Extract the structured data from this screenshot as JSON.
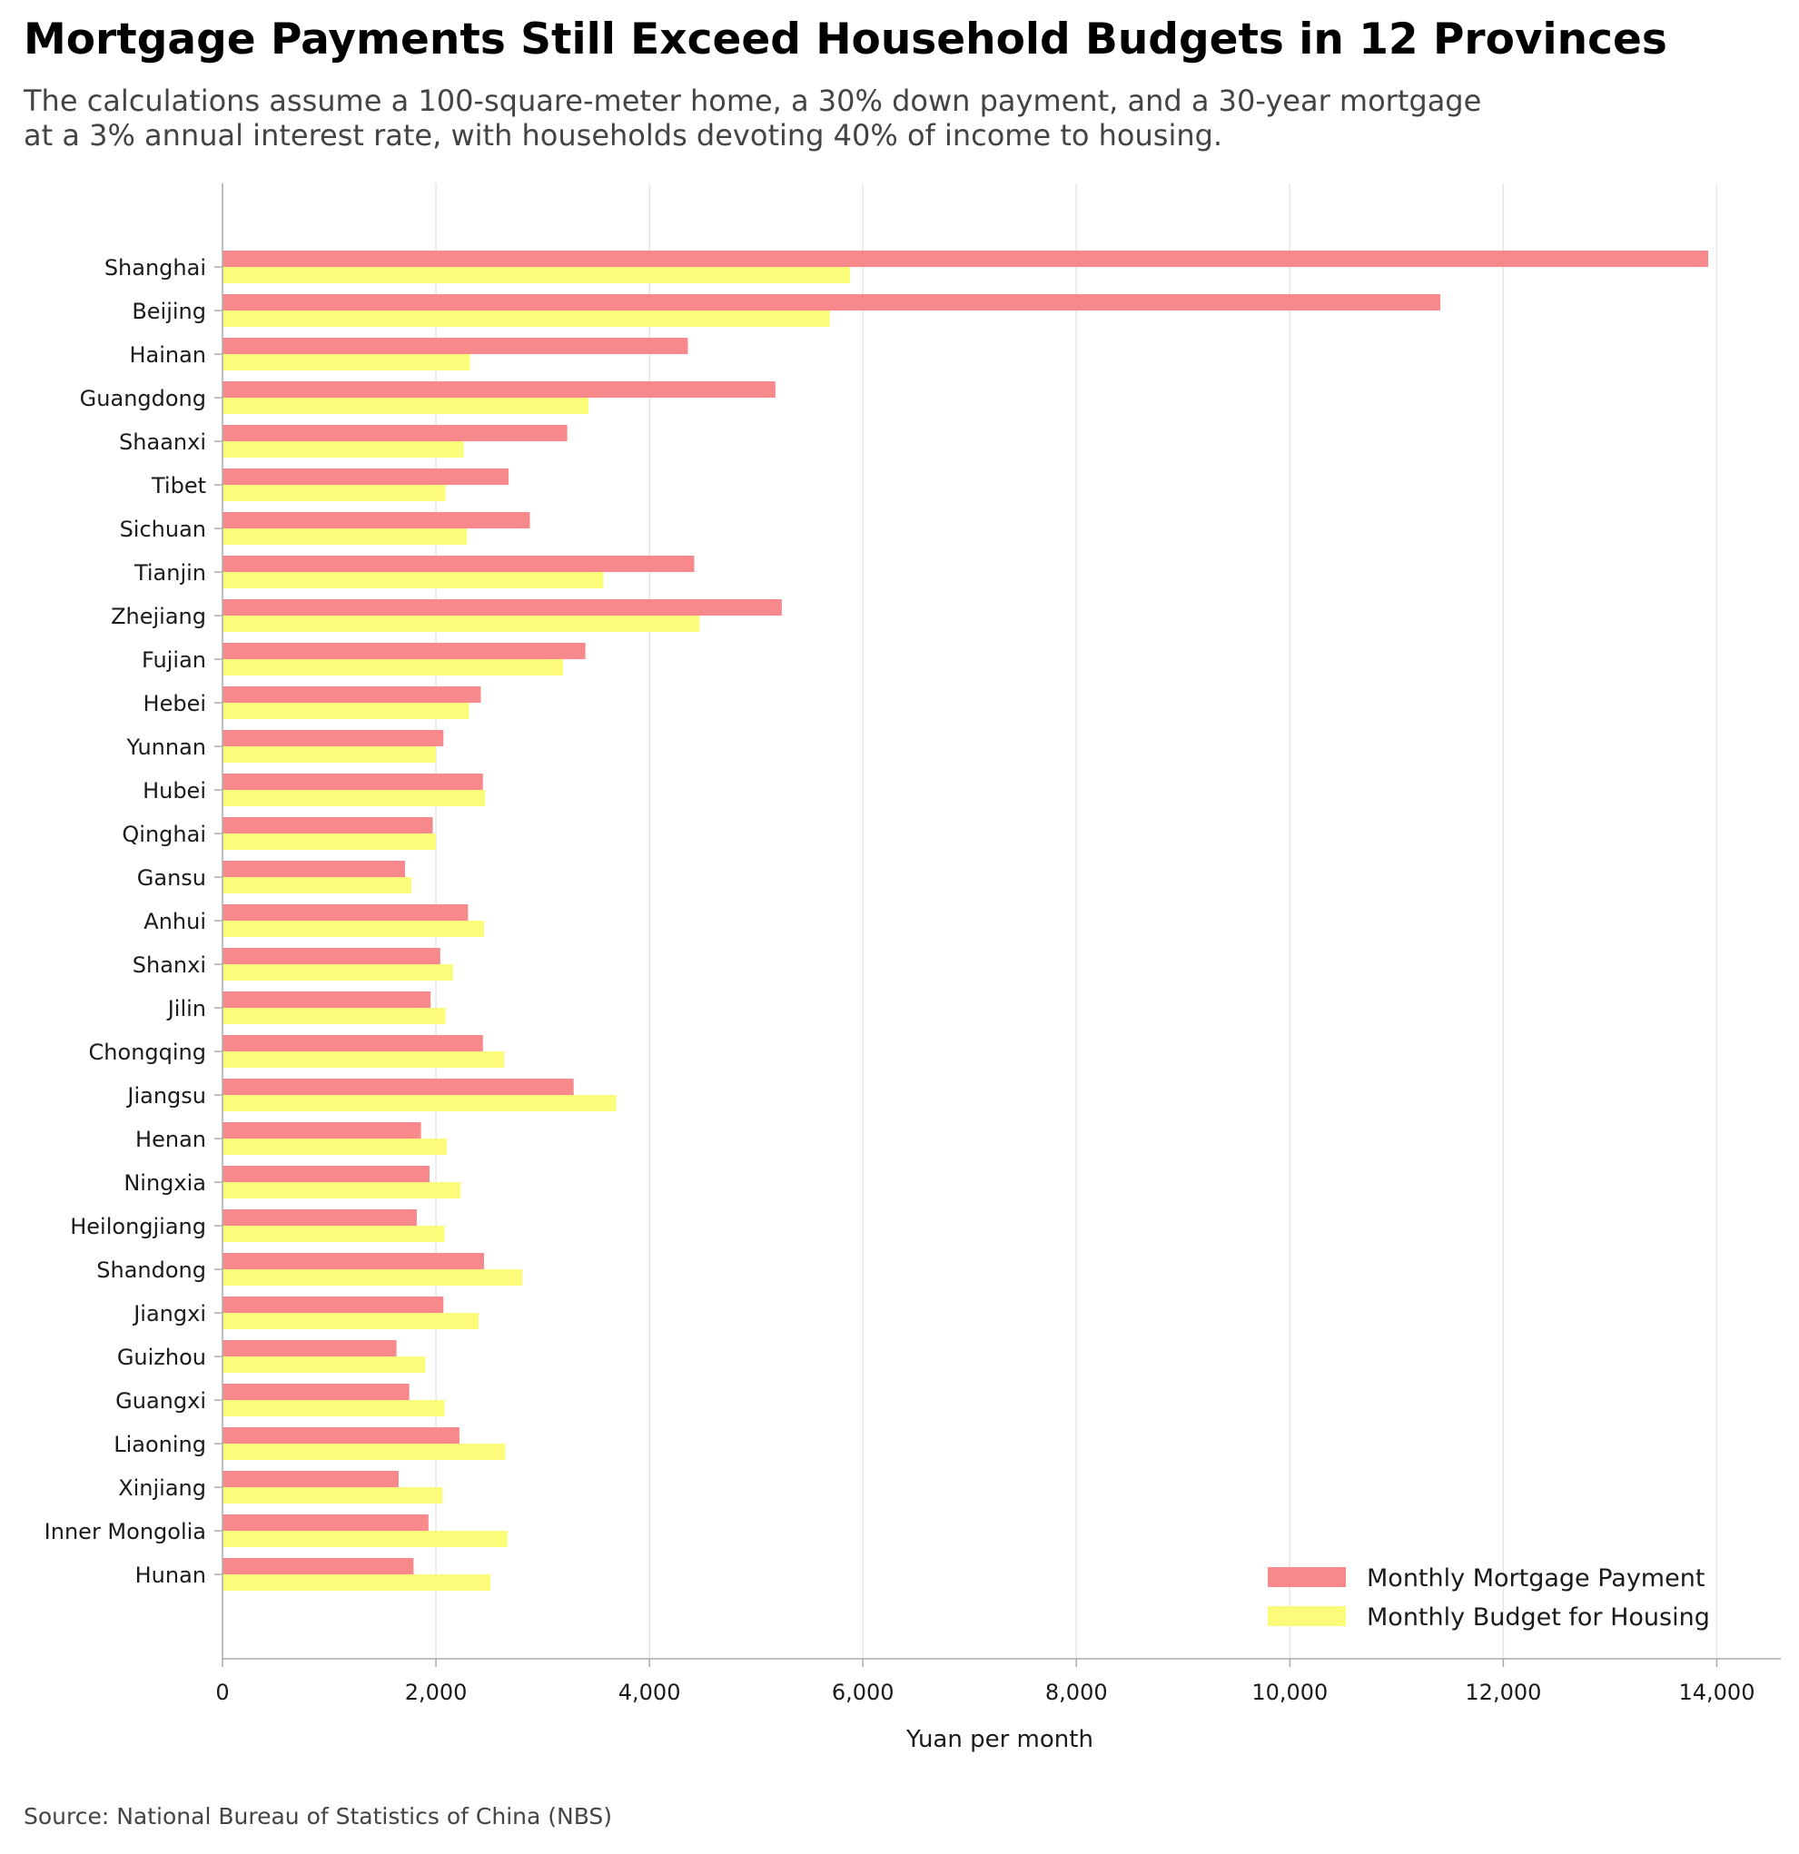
{
  "title": "Mortgage Payments Still Exceed Household Budgets in 12 Provinces",
  "subtitle_line1": "The calculations assume a 100-square-meter home, a 30% down payment, and a 30-year mortgage",
  "subtitle_line2": "at a 3% annual interest rate, with households devoting 40% of income to housing.",
  "source": "Source: National Bureau of Statistics of China (NBS)",
  "colors": {
    "mortgage": "#f7888c",
    "budget": "#fbfc7a",
    "grid": "#e6e6e6",
    "axis": "#aaaaaa"
  },
  "chart_data": {
    "type": "bar",
    "orientation": "horizontal",
    "xlabel": "Yuan per month",
    "ylabel": "",
    "xlim": [
      0,
      14600
    ],
    "xticks": [
      0,
      2000,
      4000,
      6000,
      8000,
      10000,
      12000,
      14000
    ],
    "xtick_labels": [
      "0",
      "2,000",
      "4,000",
      "6,000",
      "8,000",
      "10,000",
      "12,000",
      "14,000"
    ],
    "grid": "vertical",
    "legend_position": "bottom-right",
    "categories": [
      "Shanghai",
      "Beijing",
      "Hainan",
      "Guangdong",
      "Shaanxi",
      "Tibet",
      "Sichuan",
      "Tianjin",
      "Zhejiang",
      "Fujian",
      "Hebei",
      "Yunnan",
      "Hubei",
      "Qinghai",
      "Gansu",
      "Anhui",
      "Shanxi",
      "Jilin",
      "Chongqing",
      "Jiangsu",
      "Henan",
      "Ningxia",
      "Heilongjiang",
      "Shandong",
      "Jiangxi",
      "Guizhou",
      "Guangxi",
      "Liaoning",
      "Xinjiang",
      "Inner Mongolia",
      "Hunan"
    ],
    "series": [
      {
        "name": "Monthly Mortgage Payment",
        "values": [
          13920,
          11410,
          4360,
          5180,
          3230,
          2680,
          2880,
          4420,
          5240,
          3400,
          2420,
          2070,
          2440,
          1970,
          1710,
          2300,
          2040,
          1950,
          2440,
          3290,
          1860,
          1940,
          1820,
          2450,
          2070,
          1630,
          1750,
          2220,
          1650,
          1930,
          1790
        ]
      },
      {
        "name": "Monthly Budget for Housing",
        "values": [
          5880,
          5690,
          2320,
          3430,
          2260,
          2090,
          2290,
          3570,
          4470,
          3190,
          2310,
          2000,
          2460,
          2000,
          1770,
          2450,
          2160,
          2090,
          2640,
          3690,
          2100,
          2230,
          2080,
          2810,
          2400,
          1900,
          2080,
          2650,
          2060,
          2670,
          2510
        ]
      }
    ]
  }
}
